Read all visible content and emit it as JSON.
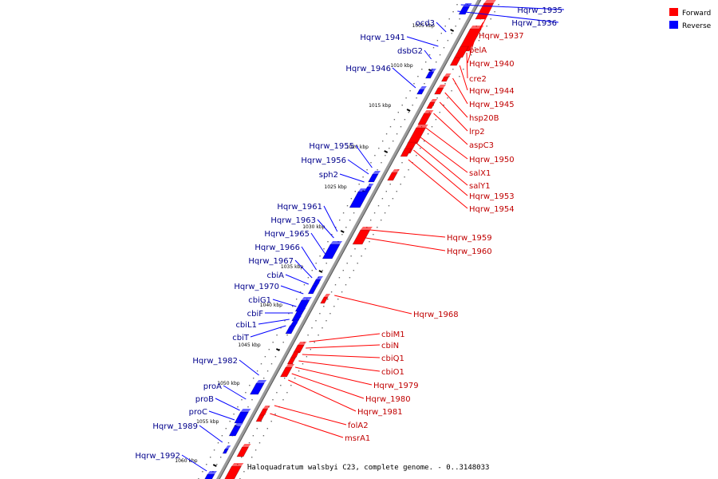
{
  "caption": "Haloquadratum walsbyi C23, complete genome. - 0..3148033",
  "legend": [
    {
      "label": "Forward",
      "color": "#ff0000"
    },
    {
      "label": "Reverse",
      "color": "#0000ff"
    }
  ],
  "ticks": [
    "1005 kbp",
    "1010 kbp",
    "1015 kbp",
    "1020 kbp",
    "1025 kbp",
    "1030 kbp",
    "1035 kbp",
    "1040 kbp",
    "1045 kbp",
    "1050 kbp",
    "1055 kbp",
    "1060 kbp"
  ],
  "forward_labels": [
    "Hqrw_1937",
    "pelA",
    "Hqrw_1940",
    "cre2",
    "Hqrw_1944",
    "Hqrw_1945",
    "hsp20B",
    "lrp2",
    "aspC3",
    "Hqrw_1950",
    "salX1",
    "salY1",
    "Hqrw_1953",
    "Hqrw_1954",
    "Hqrw_1959",
    "Hqrw_1960",
    "Hqrw_1968",
    "cbiM1",
    "cbiN",
    "cbiQ1",
    "cbiO1",
    "Hqrw_1979",
    "Hqrw_1980",
    "Hqrw_1981",
    "folA2",
    "msrA1"
  ],
  "reverse_labels": [
    "Hqrw_1935",
    "Hqrw_1936",
    "ocd3",
    "Hqrw_1941",
    "dsbG2",
    "Hqrw_1946",
    "Hqrw_1955",
    "Hqrw_1956",
    "sph2",
    "Hqrw_1961",
    "Hqrw_1963",
    "Hqrw_1965",
    "Hqrw_1966",
    "Hqrw_1967",
    "cbiA",
    "Hqrw_1970",
    "cbiG1",
    "cbiF",
    "cbiL1",
    "cbiT",
    "Hqrw_1982",
    "proA",
    "proB",
    "proC",
    "Hqrw_1989",
    "Hqrw_1992"
  ]
}
